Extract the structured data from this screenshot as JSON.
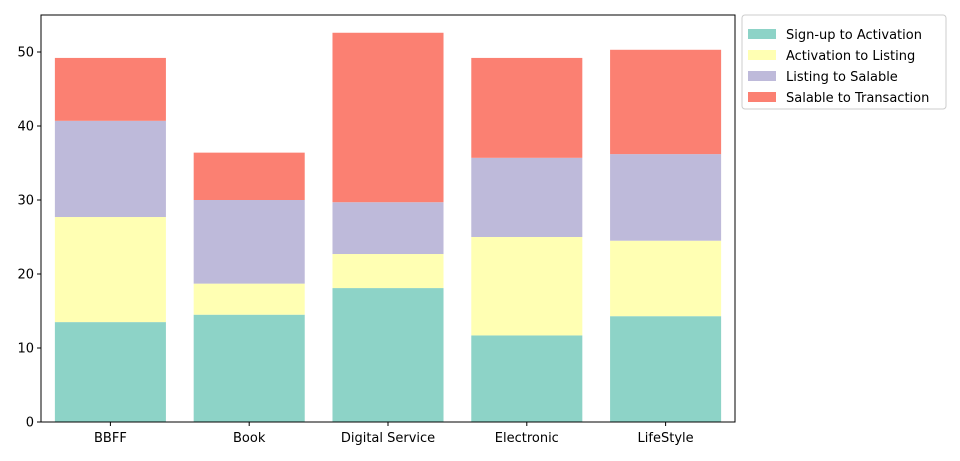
{
  "chart_data": {
    "type": "bar",
    "stacked": true,
    "categories": [
      "BBFF",
      "Book",
      "Digital Service",
      "Electronic",
      "LifeStyle"
    ],
    "series": [
      {
        "name": "Sign-up to Activation",
        "color": "#8dd3c7",
        "values": [
          13.5,
          14.5,
          18.1,
          11.7,
          14.3
        ]
      },
      {
        "name": "Activation to Listing",
        "color": "#ffffb3",
        "values": [
          14.2,
          4.2,
          4.6,
          13.3,
          10.2
        ]
      },
      {
        "name": "Listing to Salable",
        "color": "#bebada",
        "values": [
          13.0,
          11.3,
          7.0,
          10.7,
          11.7
        ]
      },
      {
        "name": "Salable to Transaction",
        "color": "#fb8072",
        "values": [
          8.5,
          6.4,
          22.9,
          13.5,
          14.1
        ]
      }
    ],
    "ylim": [
      0,
      55
    ],
    "yticks": [
      0,
      10,
      20,
      30,
      40,
      50
    ],
    "xlabel": "",
    "ylabel": "",
    "title": "",
    "grid": false,
    "legend_position": "outside-top-right"
  }
}
